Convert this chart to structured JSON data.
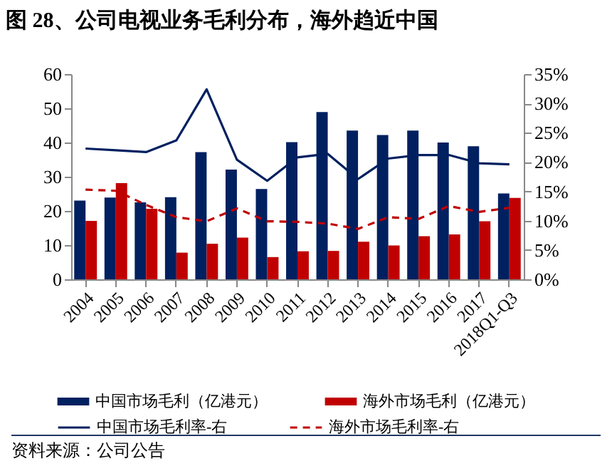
{
  "chart_data": {
    "type": "bar",
    "title": "图 28、公司电视业务毛利分布，海外趋近中国",
    "categories": [
      "2004",
      "2005",
      "2006",
      "2007",
      "2008",
      "2009",
      "2010",
      "2011",
      "2012",
      "2013",
      "2014",
      "2015",
      "2016",
      "2017",
      "2018Q1-Q3"
    ],
    "series": [
      {
        "name": "中国市场毛利（亿港元）",
        "color": "#002060",
        "values": [
          23.0,
          23.9,
          22.5,
          24.0,
          37.2,
          32.1,
          26.4,
          40.1,
          48.9,
          43.5,
          42.2,
          43.5,
          40.0,
          38.9,
          25.1
        ]
      },
      {
        "name": "海外市场毛利（亿港元）",
        "color": "#c00000",
        "values": [
          17.1,
          28.1,
          20.6,
          7.8,
          10.4,
          12.2,
          6.5,
          8.2,
          8.3,
          11.0,
          9.9,
          12.6,
          13.1,
          17.0,
          23.8
        ]
      },
      {
        "name": "中国市场毛利率-右",
        "type": "line",
        "axis": "y2",
        "line_style": "solid",
        "color": "#002060",
        "values": [
          22.3,
          22.0,
          21.7,
          23.7,
          32.4,
          20.4,
          16.8,
          20.8,
          21.4,
          17.1,
          20.6,
          21.2,
          21.2,
          19.8,
          19.6
        ]
      },
      {
        "name": "海外市场毛利率-右",
        "type": "line",
        "axis": "y2",
        "line_style": "dashed",
        "color": "#c00000",
        "values": [
          15.3,
          15.1,
          12.7,
          10.6,
          9.9,
          12.1,
          9.9,
          9.8,
          9.5,
          8.6,
          10.6,
          10.3,
          12.5,
          11.5,
          12.2
        ]
      }
    ],
    "ylim": [
      0,
      60
    ],
    "yticks": [
      0,
      10,
      20,
      30,
      40,
      50,
      60
    ],
    "y2lim": [
      0,
      35
    ],
    "y2ticks": [
      {
        "value": 0,
        "label": "0%"
      },
      {
        "value": 5,
        "label": "5%"
      },
      {
        "value": 10,
        "label": "10%"
      },
      {
        "value": 15,
        "label": "15%"
      },
      {
        "value": 20,
        "label": "20%"
      },
      {
        "value": 25,
        "label": "25%"
      },
      {
        "value": 30,
        "label": "30%"
      },
      {
        "value": 35,
        "label": "35%"
      }
    ],
    "grid": false,
    "legend": "bottom",
    "annotations": [
      "资料来源：公司公告"
    ]
  }
}
